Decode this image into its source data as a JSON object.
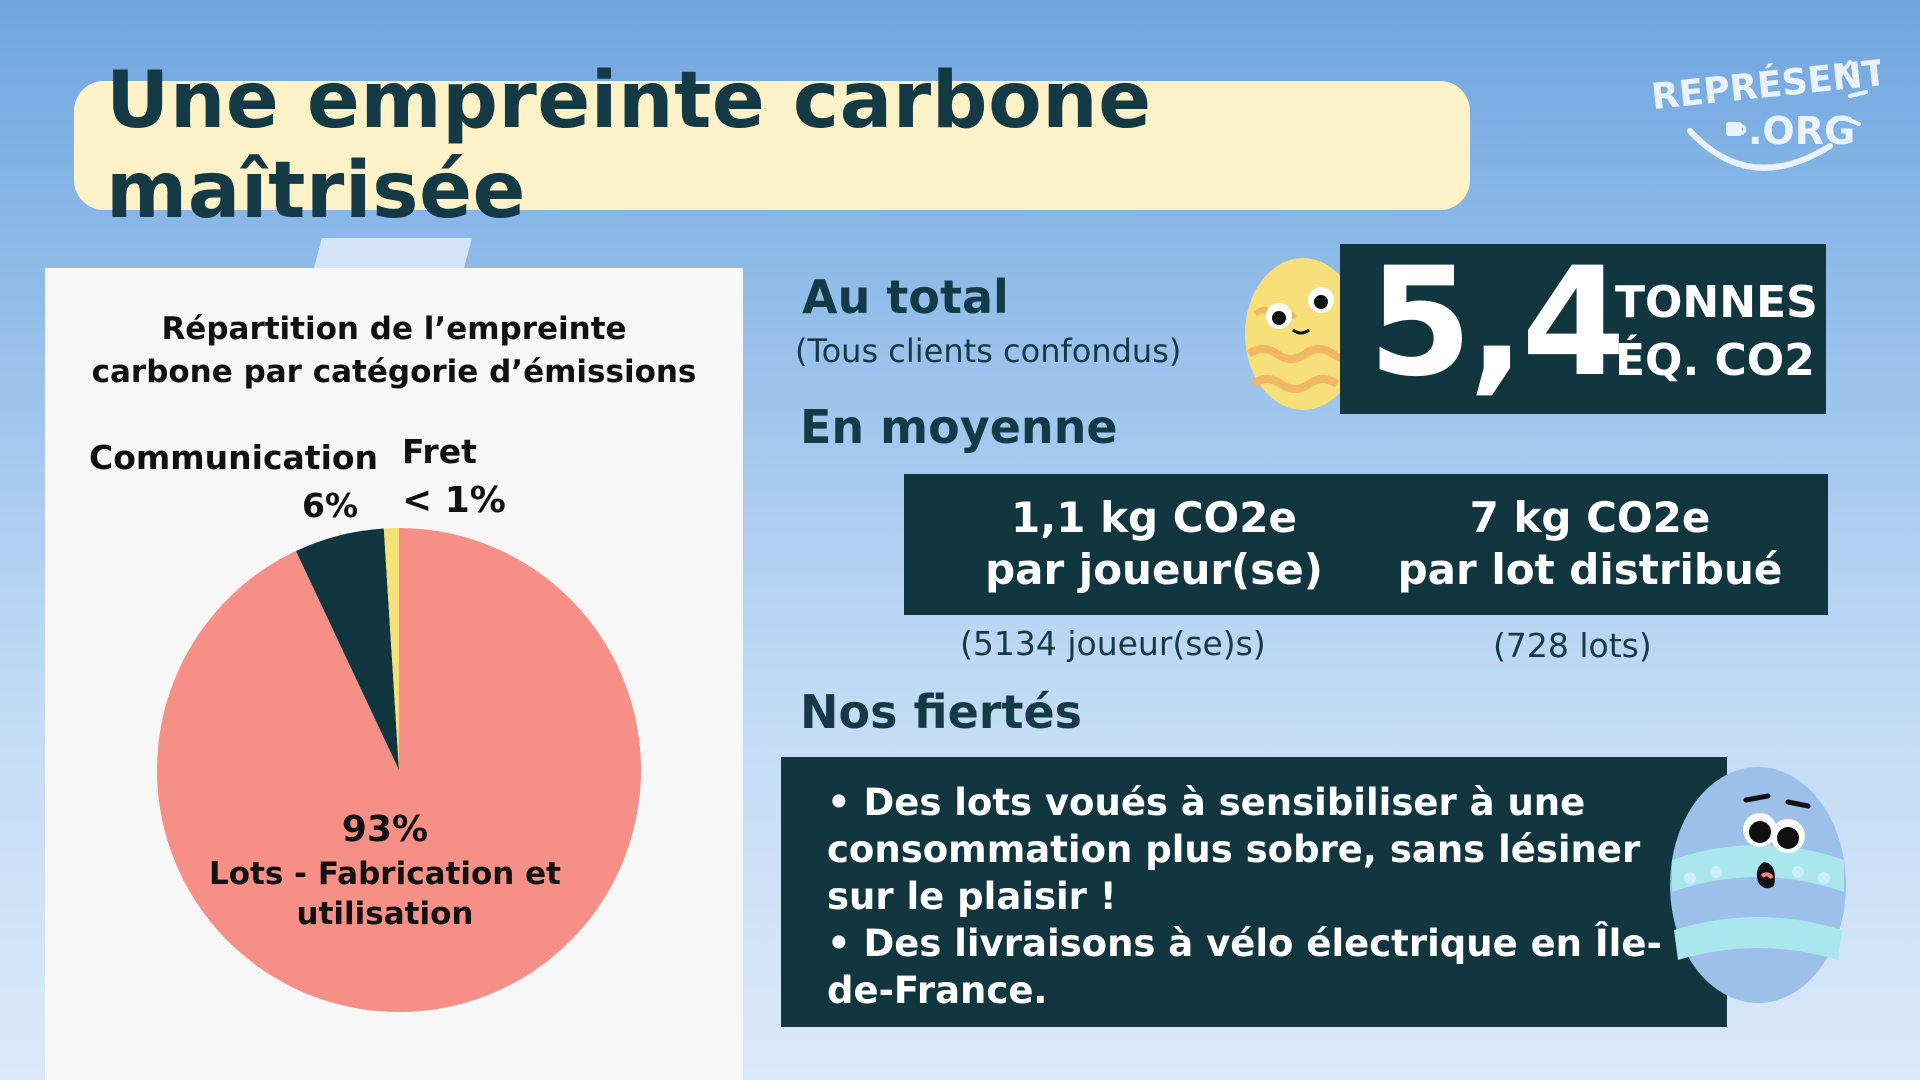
{
  "title": "Une empreinte carbone maîtrisée",
  "logo": {
    "line1": "REPRÉSENTE",
    "line2": ".ORG"
  },
  "chart_data": {
    "type": "pie",
    "title_lines": [
      "Répartition de l’empreinte",
      "carbone par catégorie d’émissions"
    ],
    "slices": [
      {
        "name": "Lots - Fabrication et utilisation",
        "value": 93,
        "label": "93%",
        "color": "#f68f86"
      },
      {
        "name": "Communication",
        "value": 6,
        "label": "6%",
        "color": "#12363f"
      },
      {
        "name": "Fret",
        "value": 1,
        "label": "< 1%",
        "color": "#f5e178"
      }
    ],
    "label_lots_lines": [
      "Lots - Fabrication et",
      "utilisation"
    ]
  },
  "total": {
    "heading": "Au total",
    "subheading": "(Tous clients confondus)",
    "value": "5,4",
    "unit_line1": "TONNES",
    "unit_line2": "ÉQ. CO2"
  },
  "average": {
    "heading": "En moyenne",
    "col1": {
      "line1": "1,1 kg CO2e",
      "line2": "par joueur(se)",
      "note": "(5134 joueur(se)s)"
    },
    "col2": {
      "line1": "7 kg CO2e",
      "line2": "par lot distribué",
      "note": "(728 lots)"
    }
  },
  "prides": {
    "heading": "Nos fiertés",
    "bullets": [
      "• Des lots voués à sensibiliser à une consommation plus sobre, sans lésiner sur le plaisir !",
      "• Des livraisons à vélo électrique en Île-de-France."
    ]
  },
  "colors": {
    "dark": "#12363f",
    "title_bg": "#fdf2c7",
    "salmon": "#f68f86",
    "yellow": "#f5e178"
  },
  "icons": [
    "yellow-egg-mascot-icon",
    "blue-egg-mascot-icon",
    "coffee-cup-icon"
  ]
}
